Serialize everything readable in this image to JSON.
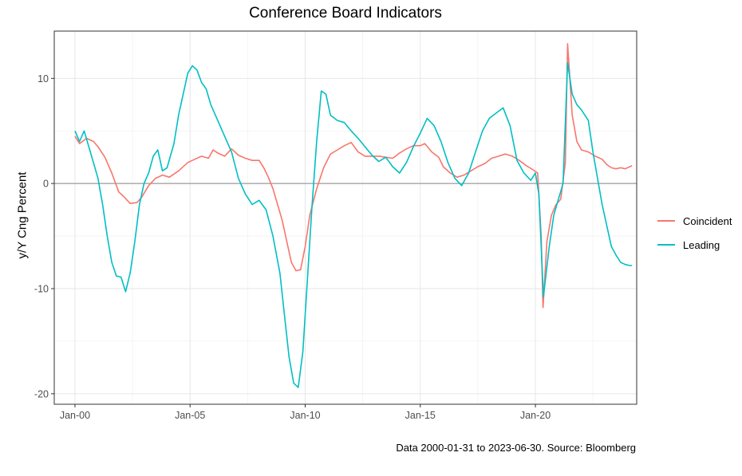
{
  "chart_data": {
    "type": "line",
    "title": "Conference Board Indicators",
    "ylabel": "y/Y Cng Percent",
    "xlabel": "",
    "caption": "Data 2000-01-31 to 2023-06-30.  Source: Bloomberg",
    "x_ticks": [
      "Jan-00",
      "Jan-05",
      "Jan-10",
      "Jan-15",
      "Jan-20"
    ],
    "x_tick_years": [
      2000,
      2005,
      2010,
      2015,
      2020
    ],
    "y_ticks": [
      -20,
      -10,
      0,
      10
    ],
    "xlim": [
      1999.1,
      2024.4
    ],
    "ylim": [
      -21,
      14.5
    ],
    "grid": true,
    "legend_position": "right",
    "series": [
      {
        "name": "Coincident",
        "color": "#F8766D",
        "points": [
          [
            2000.0,
            4.5
          ],
          [
            2000.2,
            3.8
          ],
          [
            2000.5,
            4.3
          ],
          [
            2000.8,
            4.0
          ],
          [
            2001.0,
            3.5
          ],
          [
            2001.3,
            2.5
          ],
          [
            2001.6,
            1.0
          ],
          [
            2001.9,
            -0.8
          ],
          [
            2002.1,
            -1.2
          ],
          [
            2002.4,
            -1.9
          ],
          [
            2002.7,
            -1.8
          ],
          [
            2002.9,
            -1.3
          ],
          [
            2003.2,
            -0.2
          ],
          [
            2003.5,
            0.5
          ],
          [
            2003.8,
            0.8
          ],
          [
            2004.1,
            0.6
          ],
          [
            2004.5,
            1.2
          ],
          [
            2004.9,
            2.0
          ],
          [
            2005.2,
            2.3
          ],
          [
            2005.5,
            2.6
          ],
          [
            2005.8,
            2.4
          ],
          [
            2006.0,
            3.2
          ],
          [
            2006.2,
            2.9
          ],
          [
            2006.5,
            2.6
          ],
          [
            2006.8,
            3.3
          ],
          [
            2007.1,
            2.7
          ],
          [
            2007.4,
            2.4
          ],
          [
            2007.7,
            2.2
          ],
          [
            2008.0,
            2.2
          ],
          [
            2008.2,
            1.5
          ],
          [
            2008.4,
            0.6
          ],
          [
            2008.6,
            -0.5
          ],
          [
            2008.8,
            -2.0
          ],
          [
            2009.0,
            -3.5
          ],
          [
            2009.2,
            -5.5
          ],
          [
            2009.4,
            -7.5
          ],
          [
            2009.6,
            -8.3
          ],
          [
            2009.8,
            -8.2
          ],
          [
            2010.0,
            -6.0
          ],
          [
            2010.2,
            -3.0
          ],
          [
            2010.5,
            -0.5
          ],
          [
            2010.8,
            1.5
          ],
          [
            2011.1,
            2.8
          ],
          [
            2011.4,
            3.2
          ],
          [
            2011.7,
            3.6
          ],
          [
            2012.0,
            3.9
          ],
          [
            2012.3,
            3.0
          ],
          [
            2012.6,
            2.6
          ],
          [
            2012.9,
            2.6
          ],
          [
            2013.2,
            2.6
          ],
          [
            2013.5,
            2.5
          ],
          [
            2013.8,
            2.4
          ],
          [
            2014.1,
            2.9
          ],
          [
            2014.4,
            3.3
          ],
          [
            2014.7,
            3.6
          ],
          [
            2015.0,
            3.6
          ],
          [
            2015.2,
            3.8
          ],
          [
            2015.5,
            3.0
          ],
          [
            2015.8,
            2.5
          ],
          [
            2016.0,
            1.6
          ],
          [
            2016.3,
            1.0
          ],
          [
            2016.6,
            0.6
          ],
          [
            2016.9,
            0.8
          ],
          [
            2017.2,
            1.2
          ],
          [
            2017.5,
            1.6
          ],
          [
            2017.8,
            1.9
          ],
          [
            2018.1,
            2.4
          ],
          [
            2018.4,
            2.6
          ],
          [
            2018.7,
            2.8
          ],
          [
            2019.0,
            2.6
          ],
          [
            2019.3,
            2.2
          ],
          [
            2019.6,
            1.7
          ],
          [
            2019.9,
            1.3
          ],
          [
            2020.1,
            1.0
          ],
          [
            2020.25,
            -5.0
          ],
          [
            2020.33,
            -11.8
          ],
          [
            2020.5,
            -5.5
          ],
          [
            2020.7,
            -3.0
          ],
          [
            2020.9,
            -2.0
          ],
          [
            2021.1,
            -1.5
          ],
          [
            2021.3,
            2.0
          ],
          [
            2021.4,
            13.3
          ],
          [
            2021.6,
            6.5
          ],
          [
            2021.8,
            4.0
          ],
          [
            2022.0,
            3.2
          ],
          [
            2022.3,
            3.0
          ],
          [
            2022.6,
            2.6
          ],
          [
            2022.9,
            2.3
          ],
          [
            2023.1,
            1.8
          ],
          [
            2023.3,
            1.5
          ],
          [
            2023.5,
            1.4
          ],
          [
            2023.7,
            1.5
          ],
          [
            2023.9,
            1.4
          ],
          [
            2024.1,
            1.6
          ],
          [
            2024.2,
            1.7
          ]
        ]
      },
      {
        "name": "Leading",
        "color": "#00BFC4",
        "points": [
          [
            2000.0,
            5.0
          ],
          [
            2000.2,
            4.0
          ],
          [
            2000.4,
            5.0
          ],
          [
            2000.6,
            3.5
          ],
          [
            2000.8,
            2.0
          ],
          [
            2001.0,
            0.5
          ],
          [
            2001.2,
            -2.0
          ],
          [
            2001.4,
            -5.0
          ],
          [
            2001.6,
            -7.5
          ],
          [
            2001.8,
            -8.8
          ],
          [
            2002.0,
            -8.9
          ],
          [
            2002.2,
            -10.3
          ],
          [
            2002.4,
            -8.5
          ],
          [
            2002.6,
            -5.5
          ],
          [
            2002.8,
            -2.0
          ],
          [
            2003.0,
            0.0
          ],
          [
            2003.2,
            1.0
          ],
          [
            2003.4,
            2.6
          ],
          [
            2003.6,
            3.2
          ],
          [
            2003.8,
            1.2
          ],
          [
            2004.0,
            1.5
          ],
          [
            2004.3,
            3.8
          ],
          [
            2004.5,
            6.5
          ],
          [
            2004.7,
            8.5
          ],
          [
            2004.9,
            10.5
          ],
          [
            2005.1,
            11.2
          ],
          [
            2005.3,
            10.8
          ],
          [
            2005.5,
            9.6
          ],
          [
            2005.7,
            9.0
          ],
          [
            2005.9,
            7.5
          ],
          [
            2006.2,
            6.0
          ],
          [
            2006.5,
            4.5
          ],
          [
            2006.8,
            3.0
          ],
          [
            2007.1,
            0.5
          ],
          [
            2007.4,
            -1.0
          ],
          [
            2007.7,
            -2.0
          ],
          [
            2008.0,
            -1.6
          ],
          [
            2008.3,
            -2.5
          ],
          [
            2008.6,
            -5.0
          ],
          [
            2008.9,
            -8.5
          ],
          [
            2009.1,
            -12.5
          ],
          [
            2009.3,
            -16.5
          ],
          [
            2009.5,
            -19.0
          ],
          [
            2009.7,
            -19.4
          ],
          [
            2009.9,
            -16.0
          ],
          [
            2010.1,
            -9.0
          ],
          [
            2010.3,
            -2.0
          ],
          [
            2010.5,
            4.0
          ],
          [
            2010.7,
            8.8
          ],
          [
            2010.9,
            8.5
          ],
          [
            2011.1,
            6.5
          ],
          [
            2011.4,
            6.0
          ],
          [
            2011.7,
            5.8
          ],
          [
            2012.0,
            5.0
          ],
          [
            2012.3,
            4.3
          ],
          [
            2012.6,
            3.5
          ],
          [
            2012.9,
            2.7
          ],
          [
            2013.2,
            2.1
          ],
          [
            2013.5,
            2.5
          ],
          [
            2013.8,
            1.6
          ],
          [
            2014.1,
            1.0
          ],
          [
            2014.4,
            2.0
          ],
          [
            2014.7,
            3.5
          ],
          [
            2015.0,
            4.8
          ],
          [
            2015.3,
            6.2
          ],
          [
            2015.6,
            5.5
          ],
          [
            2015.9,
            4.0
          ],
          [
            2016.2,
            2.0
          ],
          [
            2016.5,
            0.5
          ],
          [
            2016.8,
            -0.2
          ],
          [
            2017.1,
            1.0
          ],
          [
            2017.4,
            3.0
          ],
          [
            2017.7,
            5.0
          ],
          [
            2018.0,
            6.2
          ],
          [
            2018.3,
            6.7
          ],
          [
            2018.6,
            7.2
          ],
          [
            2018.9,
            5.5
          ],
          [
            2019.2,
            2.2
          ],
          [
            2019.5,
            1.0
          ],
          [
            2019.8,
            0.3
          ],
          [
            2020.0,
            1.0
          ],
          [
            2020.15,
            -1.0
          ],
          [
            2020.35,
            -10.8
          ],
          [
            2020.6,
            -6.0
          ],
          [
            2020.8,
            -3.0
          ],
          [
            2021.0,
            -1.5
          ],
          [
            2021.2,
            0.0
          ],
          [
            2021.4,
            11.5
          ],
          [
            2021.6,
            8.5
          ],
          [
            2021.8,
            7.5
          ],
          [
            2022.0,
            7.0
          ],
          [
            2022.3,
            6.0
          ],
          [
            2022.5,
            3.0
          ],
          [
            2022.7,
            0.5
          ],
          [
            2022.9,
            -2.0
          ],
          [
            2023.1,
            -4.0
          ],
          [
            2023.3,
            -6.0
          ],
          [
            2023.5,
            -6.8
          ],
          [
            2023.7,
            -7.5
          ],
          [
            2023.9,
            -7.7
          ],
          [
            2024.1,
            -7.8
          ],
          [
            2024.2,
            -7.8
          ]
        ]
      }
    ]
  }
}
